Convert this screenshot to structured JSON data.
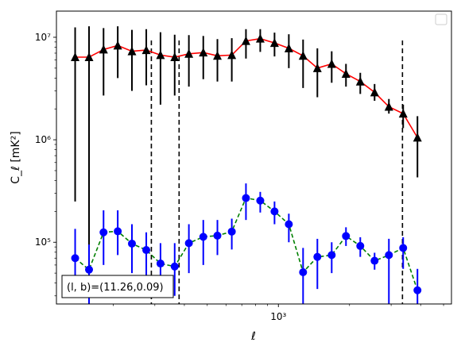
{
  "chart_data": {
    "type": "scatter",
    "xscale": "log",
    "yscale": "log",
    "xlim": [
      115,
      5400
    ],
    "ylim": [
      25000,
      18000000
    ],
    "xlabel": "ℓ",
    "ylabel": "C_ℓ [mK²]",
    "x_ticks": [
      {
        "value": 1000,
        "label": "10³"
      }
    ],
    "y_ticks": [
      {
        "value": 100000,
        "label": "10⁵"
      },
      {
        "value": 1000000,
        "label": "10⁶"
      },
      {
        "value": 10000000,
        "label": "10⁷"
      }
    ],
    "annotation": "(l, b)=(11.26,0.09)",
    "legend": {
      "placement": "top-right",
      "entries": []
    },
    "vlines": [
      290,
      380,
      3350
    ],
    "series": [
      {
        "style": "black-triangle-red-line",
        "line_color": "#ff0000",
        "marker_color": "#000000",
        "points": [
          {
            "x": 138,
            "y": 6400000,
            "lo": 250000,
            "hi": 12500000
          },
          {
            "x": 158,
            "y": 6400000,
            "lo": 25000,
            "hi": 12800000
          },
          {
            "x": 182,
            "y": 7600000,
            "lo": 2700000,
            "hi": 12300000
          },
          {
            "x": 209,
            "y": 8300000,
            "lo": 4000000,
            "hi": 12800000
          },
          {
            "x": 240,
            "y": 7300000,
            "lo": 3000000,
            "hi": 11800000
          },
          {
            "x": 276,
            "y": 7500000,
            "lo": 3400000,
            "hi": 12000000
          },
          {
            "x": 317,
            "y": 6700000,
            "lo": 2200000,
            "hi": 11200000
          },
          {
            "x": 364,
            "y": 6400000,
            "lo": 2700000,
            "hi": 10600000
          },
          {
            "x": 418,
            "y": 6900000,
            "lo": 3300000,
            "hi": 10500000
          },
          {
            "x": 481,
            "y": 7100000,
            "lo": 3900000,
            "hi": 10300000
          },
          {
            "x": 552,
            "y": 6600000,
            "lo": 3700000,
            "hi": 9600000
          },
          {
            "x": 635,
            "y": 6700000,
            "lo": 3700000,
            "hi": 9800000
          },
          {
            "x": 729,
            "y": 9200000,
            "lo": 6200000,
            "hi": 12000000
          },
          {
            "x": 838,
            "y": 9700000,
            "lo": 7200000,
            "hi": 12000000
          },
          {
            "x": 963,
            "y": 8800000,
            "lo": 6500000,
            "hi": 11100000
          },
          {
            "x": 1107,
            "y": 7800000,
            "lo": 5000000,
            "hi": 10700000
          },
          {
            "x": 1272,
            "y": 6600000,
            "lo": 3200000,
            "hi": 9500000
          },
          {
            "x": 1462,
            "y": 5000000,
            "lo": 2600000,
            "hi": 7800000
          },
          {
            "x": 1681,
            "y": 5500000,
            "lo": 3600000,
            "hi": 7300000
          },
          {
            "x": 1932,
            "y": 4400000,
            "lo": 3300000,
            "hi": 5500000
          },
          {
            "x": 2221,
            "y": 3700000,
            "lo": 2800000,
            "hi": 4500000
          },
          {
            "x": 2553,
            "y": 2900000,
            "lo": 2400000,
            "hi": 3500000
          },
          {
            "x": 2935,
            "y": 2100000,
            "lo": 1800000,
            "hi": 2500000
          },
          {
            "x": 3373,
            "y": 1800000,
            "lo": 1300000,
            "hi": 2200000
          },
          {
            "x": 3877,
            "y": 1050000,
            "lo": 430000,
            "hi": 1700000
          }
        ]
      },
      {
        "style": "blue-circle-green-dashed",
        "line_color": "#008000",
        "marker_color": "#0000ff",
        "points": [
          {
            "x": 138,
            "y": 70000,
            "lo": 38000,
            "hi": 135000
          },
          {
            "x": 158,
            "y": 54000,
            "lo": 25000,
            "hi": 95000
          },
          {
            "x": 182,
            "y": 125000,
            "lo": 60000,
            "hi": 205000
          },
          {
            "x": 209,
            "y": 128000,
            "lo": 75000,
            "hi": 205000
          },
          {
            "x": 240,
            "y": 97000,
            "lo": 50000,
            "hi": 150000
          },
          {
            "x": 276,
            "y": 84000,
            "lo": 40000,
            "hi": 125000
          },
          {
            "x": 317,
            "y": 62000,
            "lo": 35000,
            "hi": 98000
          },
          {
            "x": 364,
            "y": 58000,
            "lo": 30000,
            "hi": 98000
          },
          {
            "x": 418,
            "y": 98000,
            "lo": 50000,
            "hi": 150000
          },
          {
            "x": 481,
            "y": 113000,
            "lo": 60000,
            "hi": 165000
          },
          {
            "x": 552,
            "y": 116000,
            "lo": 75000,
            "hi": 165000
          },
          {
            "x": 635,
            "y": 127000,
            "lo": 85000,
            "hi": 170000
          },
          {
            "x": 729,
            "y": 270000,
            "lo": 165000,
            "hi": 375000
          },
          {
            "x": 838,
            "y": 255000,
            "lo": 195000,
            "hi": 310000
          },
          {
            "x": 963,
            "y": 200000,
            "lo": 150000,
            "hi": 250000
          },
          {
            "x": 1107,
            "y": 150000,
            "lo": 100000,
            "hi": 190000
          },
          {
            "x": 1272,
            "y": 51000,
            "lo": 25000,
            "hi": 88000
          },
          {
            "x": 1462,
            "y": 72000,
            "lo": 35000,
            "hi": 108000
          },
          {
            "x": 1681,
            "y": 75000,
            "lo": 50000,
            "hi": 100000
          },
          {
            "x": 1932,
            "y": 115000,
            "lo": 92000,
            "hi": 140000
          },
          {
            "x": 2221,
            "y": 92000,
            "lo": 72000,
            "hi": 112000
          },
          {
            "x": 2553,
            "y": 66000,
            "lo": 54000,
            "hi": 79000
          },
          {
            "x": 2935,
            "y": 75000,
            "lo": 25000,
            "hi": 108000
          },
          {
            "x": 3373,
            "y": 88000,
            "lo": 55000,
            "hi": 112000
          },
          {
            "x": 3877,
            "y": 34000,
            "lo": 25000,
            "hi": 55000
          }
        ]
      }
    ]
  }
}
